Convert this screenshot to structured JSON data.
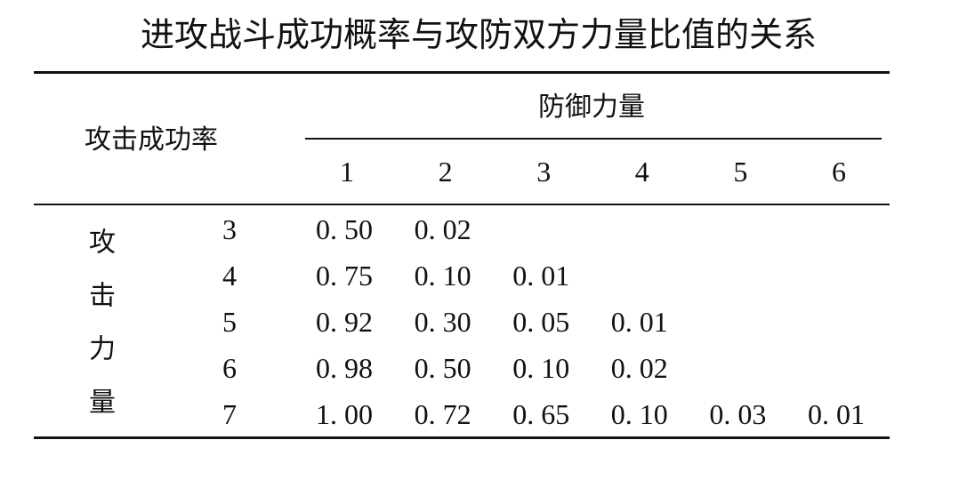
{
  "title": "进攻战斗成功概率与攻防双方力量比值的关系",
  "table": {
    "corner": "攻击成功率",
    "column_group": "防御力量",
    "columns": [
      "1",
      "2",
      "3",
      "4",
      "5",
      "6"
    ],
    "row_group": "攻击力量",
    "rows": [
      {
        "label": "3",
        "cells": [
          "0. 50",
          "0. 02"
        ]
      },
      {
        "label": "4",
        "cells": [
          "0. 75",
          "0. 10",
          "0. 01"
        ]
      },
      {
        "label": "5",
        "cells": [
          "0. 92",
          "0. 30",
          "0. 05",
          "0. 01"
        ]
      },
      {
        "label": "6",
        "cells": [
          "0. 98",
          "0. 50",
          "0. 10",
          "0. 02"
        ]
      },
      {
        "label": "7",
        "cells": [
          "1. 00",
          "0. 72",
          "0. 65",
          "0. 10",
          "0. 03",
          "0. 01"
        ]
      }
    ]
  }
}
